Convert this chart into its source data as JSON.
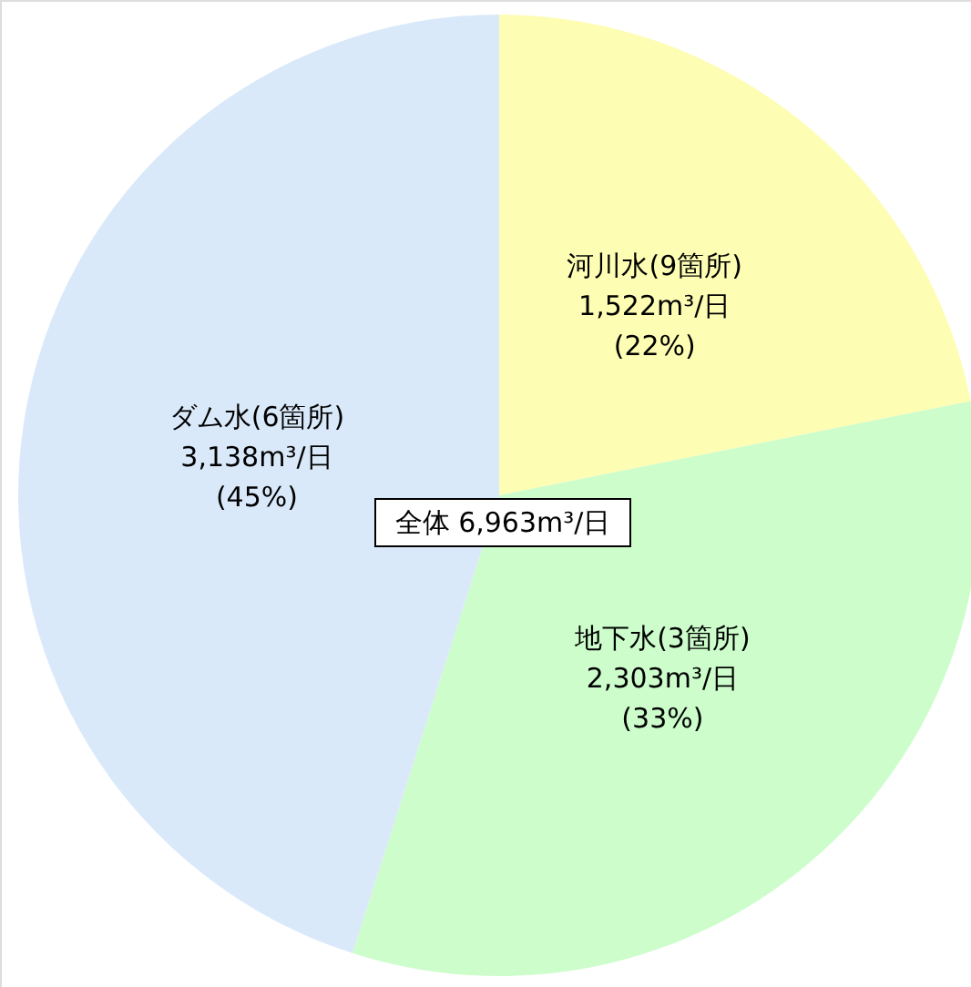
{
  "chart_data": {
    "type": "pie",
    "categories": [
      "河川水(9箇所)",
      "地下水(3箇所)",
      "ダム水(6箇所)"
    ],
    "values": [
      1522,
      2303,
      3138
    ],
    "colors": [
      "#fdfdb4",
      "#ccfdcb",
      "#dae9fa"
    ],
    "value_labels": [
      "1,522m³/日",
      "2,303m³/日",
      "3,138m³/日"
    ],
    "annotations": [
      "全体 6,963m³/日",
      {
        "text": "(22%)",
        "x": "河川水(9箇所)"
      },
      {
        "text": "(33%)",
        "x": "地下水(3箇所)"
      },
      {
        "text": "(45%)",
        "x": "ダム水(6箇所)"
      }
    ]
  }
}
